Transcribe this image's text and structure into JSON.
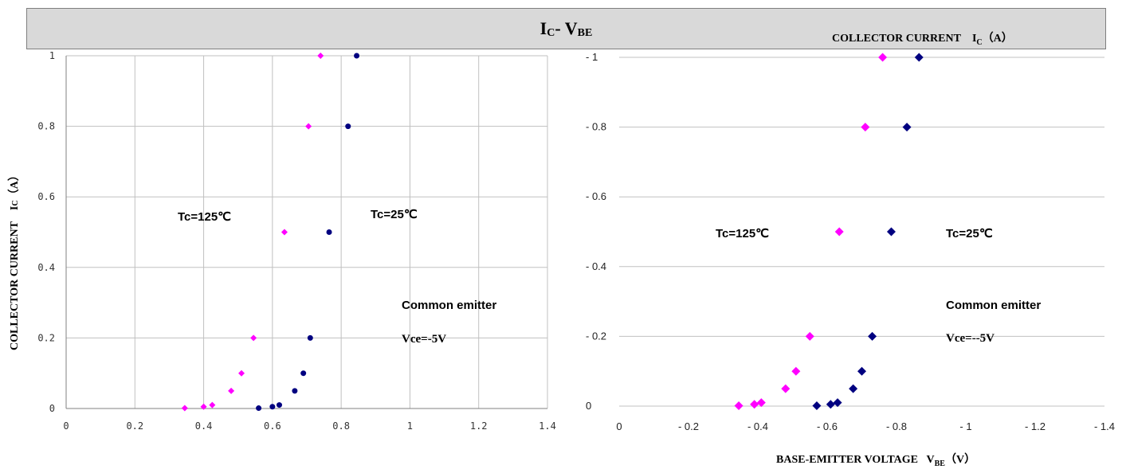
{
  "header": {
    "title_main": "I",
    "title_sub1": "C",
    "title_mid": "- V",
    "title_sub2": "BE",
    "top_ylabel_pre": "COLLECTOR CURRENT",
    "top_ylabel_i": "I",
    "top_ylabel_sub": "C",
    "top_ylabel_unit": "（A）",
    "left_ylabel": "COLLECTOR CURRENT",
    "left_ylabel_i": "I",
    "left_ylabel_sub": "C",
    "left_ylabel_unit": "（A）",
    "bottom_xlabel_pre": "BASE-EMITTER VOLTAGE",
    "bottom_xlabel_v": "V",
    "bottom_xlabel_sub": "BE",
    "bottom_xlabel_unit": "（V）"
  },
  "colors": {
    "series_125": "#ff00ff",
    "series_25": "#000080",
    "grid": "#c0c0c0",
    "header_bg": "#d9d9d9"
  },
  "chart_data": [
    {
      "type": "scatter",
      "xlim": [
        0,
        1.4
      ],
      "ylim": [
        0,
        1
      ],
      "xticks": [
        "0",
        "0.2",
        "0.4",
        "0.6",
        "0.8",
        "1",
        "1.2",
        "1.4"
      ],
      "yticks": [
        "0",
        "0.2",
        "0.4",
        "0.6",
        "0.8",
        "1"
      ],
      "grid": true,
      "marker": "circle",
      "series": [
        {
          "x": [
            0.345,
            0.4,
            0.425,
            0.48,
            0.51,
            0.545,
            0.635,
            0.705,
            0.74
          ],
          "y": [
            0.001,
            0.005,
            0.01,
            0.05,
            0.1,
            0.2,
            0.5,
            0.8,
            1.0
          ]
        },
        {
          "x": [
            0.56,
            0.6,
            0.62,
            0.665,
            0.69,
            0.71,
            0.765,
            0.82,
            0.845
          ],
          "y": [
            0.001,
            0.005,
            0.01,
            0.05,
            0.1,
            0.2,
            0.5,
            0.8,
            1.0
          ]
        }
      ],
      "annotations": [
        "Tc=125℃",
        "Tc=25℃",
        "Common emitter",
        "Vce=-5V"
      ]
    },
    {
      "type": "scatter",
      "xlim": [
        0,
        1.4
      ],
      "ylim": [
        0,
        1
      ],
      "xticks": [
        "0",
        "- 0.2",
        "- 0.4",
        "- 0.6",
        "- 0.8",
        "- 1",
        "- 1.2",
        "- 1.4"
      ],
      "yticks": [
        "0",
        "- 0.2",
        "- 0.4",
        "- 0.6",
        "- 0.8",
        "- 1"
      ],
      "grid": true,
      "marker": "diamond",
      "series": [
        {
          "x": [
            0.345,
            0.39,
            0.41,
            0.48,
            0.51,
            0.55,
            0.635,
            0.71,
            0.76
          ],
          "y": [
            0.001,
            0.005,
            0.01,
            0.05,
            0.1,
            0.2,
            0.5,
            0.8,
            1.0
          ]
        },
        {
          "x": [
            0.57,
            0.61,
            0.63,
            0.675,
            0.7,
            0.73,
            0.785,
            0.83,
            0.865
          ],
          "y": [
            0.001,
            0.005,
            0.01,
            0.05,
            0.1,
            0.2,
            0.5,
            0.8,
            1.0
          ]
        }
      ],
      "annotations": [
        "Tc=125℃",
        "Tc=25℃",
        "Common emitter",
        "Vce=--5V"
      ]
    }
  ]
}
